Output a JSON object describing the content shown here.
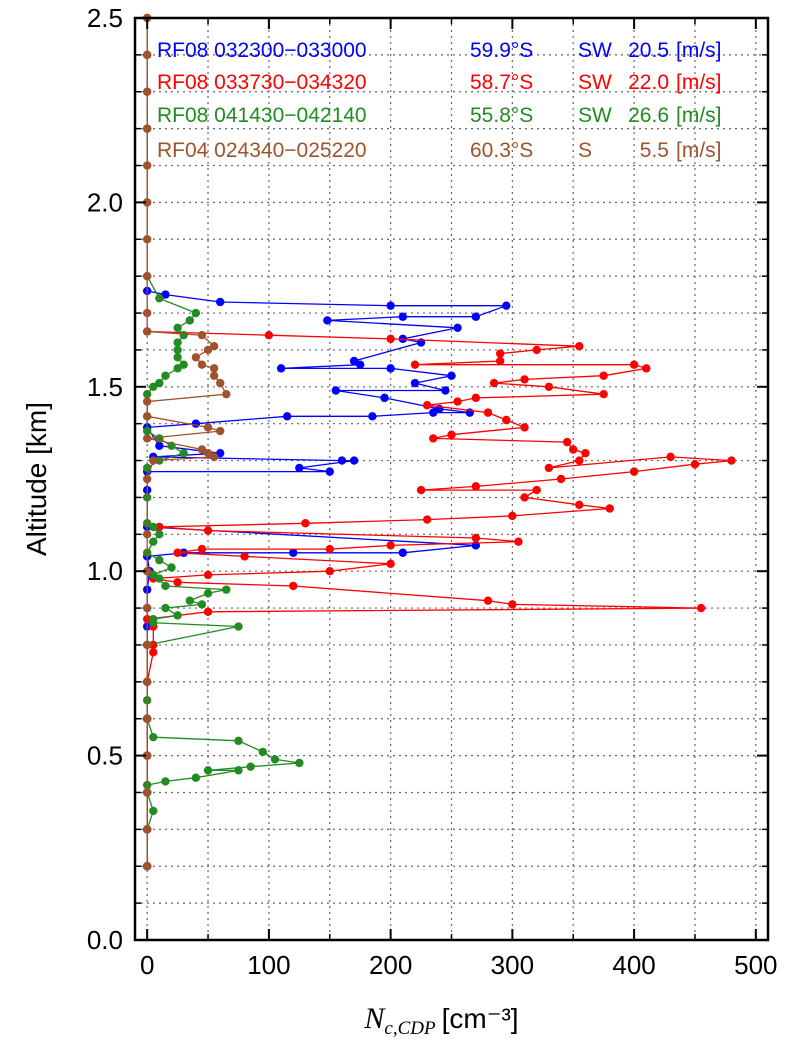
{
  "chart_data": {
    "type": "scatter",
    "xlabel_main": "N",
    "xlabel_sub": "c,CDP",
    "xlabel_unit": "[cm⁻³]",
    "ylabel": "Altitude [km]",
    "xlim": [
      -10,
      510
    ],
    "ylim": [
      0.0,
      2.5
    ],
    "x_ticks": [
      "0",
      "100",
      "200",
      "300",
      "400",
      "500"
    ],
    "y_ticks": [
      "0.0",
      "0.5",
      "1.0",
      "1.5",
      "2.0",
      "2.5"
    ],
    "grid": true,
    "legend_position": "top",
    "series": [
      {
        "name": "RF08 032300−033000",
        "lat": "59.9°S",
        "dir": "SW",
        "speed": "20.5",
        "unit": "[m/s]",
        "color": "#0000ff",
        "points": [
          [
            0,
            1.76
          ],
          [
            15,
            1.75
          ],
          [
            60,
            1.73
          ],
          [
            200,
            1.72
          ],
          [
            295,
            1.72
          ],
          [
            270,
            1.69
          ],
          [
            210,
            1.69
          ],
          [
            148,
            1.68
          ],
          [
            255,
            1.66
          ],
          [
            210,
            1.63
          ],
          [
            225,
            1.62
          ],
          [
            170,
            1.57
          ],
          [
            175,
            1.56
          ],
          [
            110,
            1.55
          ],
          [
            200,
            1.55
          ],
          [
            250,
            1.53
          ],
          [
            220,
            1.51
          ],
          [
            245,
            1.49
          ],
          [
            155,
            1.49
          ],
          [
            195,
            1.47
          ],
          [
            240,
            1.44
          ],
          [
            265,
            1.43
          ],
          [
            235,
            1.43
          ],
          [
            185,
            1.42
          ],
          [
            115,
            1.42
          ],
          [
            40,
            1.4
          ],
          [
            0,
            1.39
          ],
          [
            10,
            1.34
          ],
          [
            60,
            1.32
          ],
          [
            5,
            1.31
          ],
          [
            160,
            1.3
          ],
          [
            170,
            1.3
          ],
          [
            125,
            1.28
          ],
          [
            150,
            1.27
          ],
          [
            0,
            1.27
          ],
          [
            0,
            1.22
          ],
          [
            0,
            1.12
          ],
          [
            270,
            1.07
          ],
          [
            210,
            1.05
          ],
          [
            120,
            1.05
          ],
          [
            30,
            1.05
          ],
          [
            0,
            1.04
          ],
          [
            2,
            1.0
          ],
          [
            0,
            0.95
          ],
          [
            0,
            0.9
          ],
          [
            0,
            0.85
          ],
          [
            0,
            0.8
          ],
          [
            0,
            0.7
          ],
          [
            0,
            0.6
          ],
          [
            0,
            0.5
          ],
          [
            0,
            0.4
          ],
          [
            0,
            0.3
          ],
          [
            0,
            0.2
          ]
        ]
      },
      {
        "name": "RF08 033730−034320",
        "lat": "58.7°S",
        "dir": "SW",
        "speed": "22.0",
        "unit": "[m/s]",
        "color": "#ff0000",
        "points": [
          [
            0,
            1.65
          ],
          [
            100,
            1.64
          ],
          [
            200,
            1.63
          ],
          [
            355,
            1.61
          ],
          [
            320,
            1.6
          ],
          [
            290,
            1.59
          ],
          [
            290,
            1.57
          ],
          [
            220,
            1.56
          ],
          [
            400,
            1.56
          ],
          [
            410,
            1.55
          ],
          [
            375,
            1.53
          ],
          [
            310,
            1.52
          ],
          [
            285,
            1.51
          ],
          [
            330,
            1.5
          ],
          [
            375,
            1.48
          ],
          [
            270,
            1.47
          ],
          [
            255,
            1.46
          ],
          [
            230,
            1.45
          ],
          [
            280,
            1.43
          ],
          [
            295,
            1.41
          ],
          [
            310,
            1.39
          ],
          [
            250,
            1.37
          ],
          [
            235,
            1.36
          ],
          [
            345,
            1.35
          ],
          [
            350,
            1.33
          ],
          [
            360,
            1.32
          ],
          [
            355,
            1.3
          ],
          [
            330,
            1.28
          ],
          [
            430,
            1.31
          ],
          [
            480,
            1.3
          ],
          [
            450,
            1.29
          ],
          [
            400,
            1.27
          ],
          [
            340,
            1.25
          ],
          [
            270,
            1.23
          ],
          [
            225,
            1.22
          ],
          [
            320,
            1.22
          ],
          [
            310,
            1.2
          ],
          [
            355,
            1.18
          ],
          [
            380,
            1.17
          ],
          [
            300,
            1.15
          ],
          [
            230,
            1.14
          ],
          [
            130,
            1.13
          ],
          [
            10,
            1.12
          ],
          [
            50,
            1.11
          ],
          [
            270,
            1.09
          ],
          [
            305,
            1.08
          ],
          [
            200,
            1.07
          ],
          [
            150,
            1.06
          ],
          [
            45,
            1.06
          ],
          [
            25,
            1.05
          ],
          [
            80,
            1.04
          ],
          [
            200,
            1.02
          ],
          [
            150,
            1.0
          ],
          [
            50,
            0.99
          ],
          [
            5,
            0.98
          ],
          [
            25,
            0.97
          ],
          [
            120,
            0.96
          ],
          [
            280,
            0.92
          ],
          [
            300,
            0.91
          ],
          [
            455,
            0.9
          ],
          [
            50,
            0.89
          ],
          [
            0,
            0.87
          ],
          [
            5,
            0.85
          ],
          [
            5,
            0.8
          ],
          [
            5,
            0.78
          ],
          [
            0,
            0.7
          ],
          [
            0,
            0.6
          ],
          [
            0,
            0.5
          ],
          [
            0,
            0.4
          ],
          [
            0,
            0.3
          ],
          [
            0,
            0.2
          ]
        ]
      },
      {
        "name": "RF08 041430−042140",
        "lat": "55.8°S",
        "dir": "SW",
        "speed": "26.6",
        "unit": "[m/s]",
        "color": "#228b22",
        "points": [
          [
            0,
            2.5
          ],
          [
            0,
            2.4
          ],
          [
            0,
            2.2
          ],
          [
            0,
            2.0
          ],
          [
            0,
            1.8
          ],
          [
            10,
            1.74
          ],
          [
            40,
            1.7
          ],
          [
            35,
            1.68
          ],
          [
            25,
            1.66
          ],
          [
            30,
            1.64
          ],
          [
            25,
            1.62
          ],
          [
            25,
            1.6
          ],
          [
            25,
            1.58
          ],
          [
            30,
            1.56
          ],
          [
            25,
            1.55
          ],
          [
            15,
            1.53
          ],
          [
            10,
            1.51
          ],
          [
            5,
            1.5
          ],
          [
            0,
            1.48
          ],
          [
            0,
            1.42
          ],
          [
            0,
            1.38
          ],
          [
            10,
            1.36
          ],
          [
            20,
            1.34
          ],
          [
            30,
            1.32
          ],
          [
            10,
            1.3
          ],
          [
            0,
            1.28
          ],
          [
            0,
            1.2
          ],
          [
            0,
            1.13
          ],
          [
            5,
            1.12
          ],
          [
            10,
            1.1
          ],
          [
            5,
            1.08
          ],
          [
            0,
            1.05
          ],
          [
            10,
            1.03
          ],
          [
            20,
            1.01
          ],
          [
            5,
            0.99
          ],
          [
            10,
            0.98
          ],
          [
            15,
            0.96
          ],
          [
            65,
            0.95
          ],
          [
            50,
            0.94
          ],
          [
            35,
            0.92
          ],
          [
            45,
            0.91
          ],
          [
            15,
            0.9
          ],
          [
            25,
            0.88
          ],
          [
            5,
            0.87
          ],
          [
            5,
            0.86
          ],
          [
            75,
            0.85
          ],
          [
            0,
            0.8
          ],
          [
            0,
            0.7
          ],
          [
            0,
            0.65
          ],
          [
            0,
            0.6
          ],
          [
            5,
            0.55
          ],
          [
            75,
            0.54
          ],
          [
            95,
            0.51
          ],
          [
            105,
            0.49
          ],
          [
            125,
            0.48
          ],
          [
            85,
            0.47
          ],
          [
            50,
            0.46
          ],
          [
            75,
            0.46
          ],
          [
            40,
            0.44
          ],
          [
            15,
            0.43
          ],
          [
            0,
            0.42
          ],
          [
            0,
            0.4
          ],
          [
            5,
            0.35
          ],
          [
            0,
            0.3
          ],
          [
            0,
            0.2
          ]
        ]
      },
      {
        "name": "RF04 024340−025220",
        "lat": "60.3°S",
        "dir": "S",
        "speed": "5.5",
        "unit": "[m/s]",
        "color": "#a0522d",
        "points": [
          [
            0,
            2.5
          ],
          [
            0,
            2.4
          ],
          [
            0,
            2.3
          ],
          [
            0,
            2.2
          ],
          [
            0,
            2.1
          ],
          [
            0,
            2.0
          ],
          [
            0,
            1.9
          ],
          [
            0,
            1.8
          ],
          [
            0,
            1.7
          ],
          [
            0,
            1.65
          ],
          [
            45,
            1.64
          ],
          [
            55,
            1.61
          ],
          [
            50,
            1.6
          ],
          [
            40,
            1.58
          ],
          [
            45,
            1.56
          ],
          [
            55,
            1.55
          ],
          [
            55,
            1.53
          ],
          [
            60,
            1.51
          ],
          [
            65,
            1.48
          ],
          [
            0,
            1.46
          ],
          [
            0,
            1.42
          ],
          [
            50,
            1.39
          ],
          [
            60,
            1.38
          ],
          [
            0,
            1.36
          ],
          [
            45,
            1.33
          ],
          [
            50,
            1.32
          ],
          [
            55,
            1.31
          ],
          [
            5,
            1.3
          ],
          [
            0,
            1.25
          ],
          [
            0,
            1.1
          ],
          [
            0,
            1.0
          ],
          [
            0,
            0.9
          ],
          [
            0,
            0.8
          ],
          [
            0,
            0.7
          ],
          [
            0,
            0.6
          ],
          [
            0,
            0.5
          ],
          [
            0,
            0.4
          ],
          [
            0,
            0.3
          ],
          [
            0,
            0.2
          ]
        ]
      }
    ]
  }
}
